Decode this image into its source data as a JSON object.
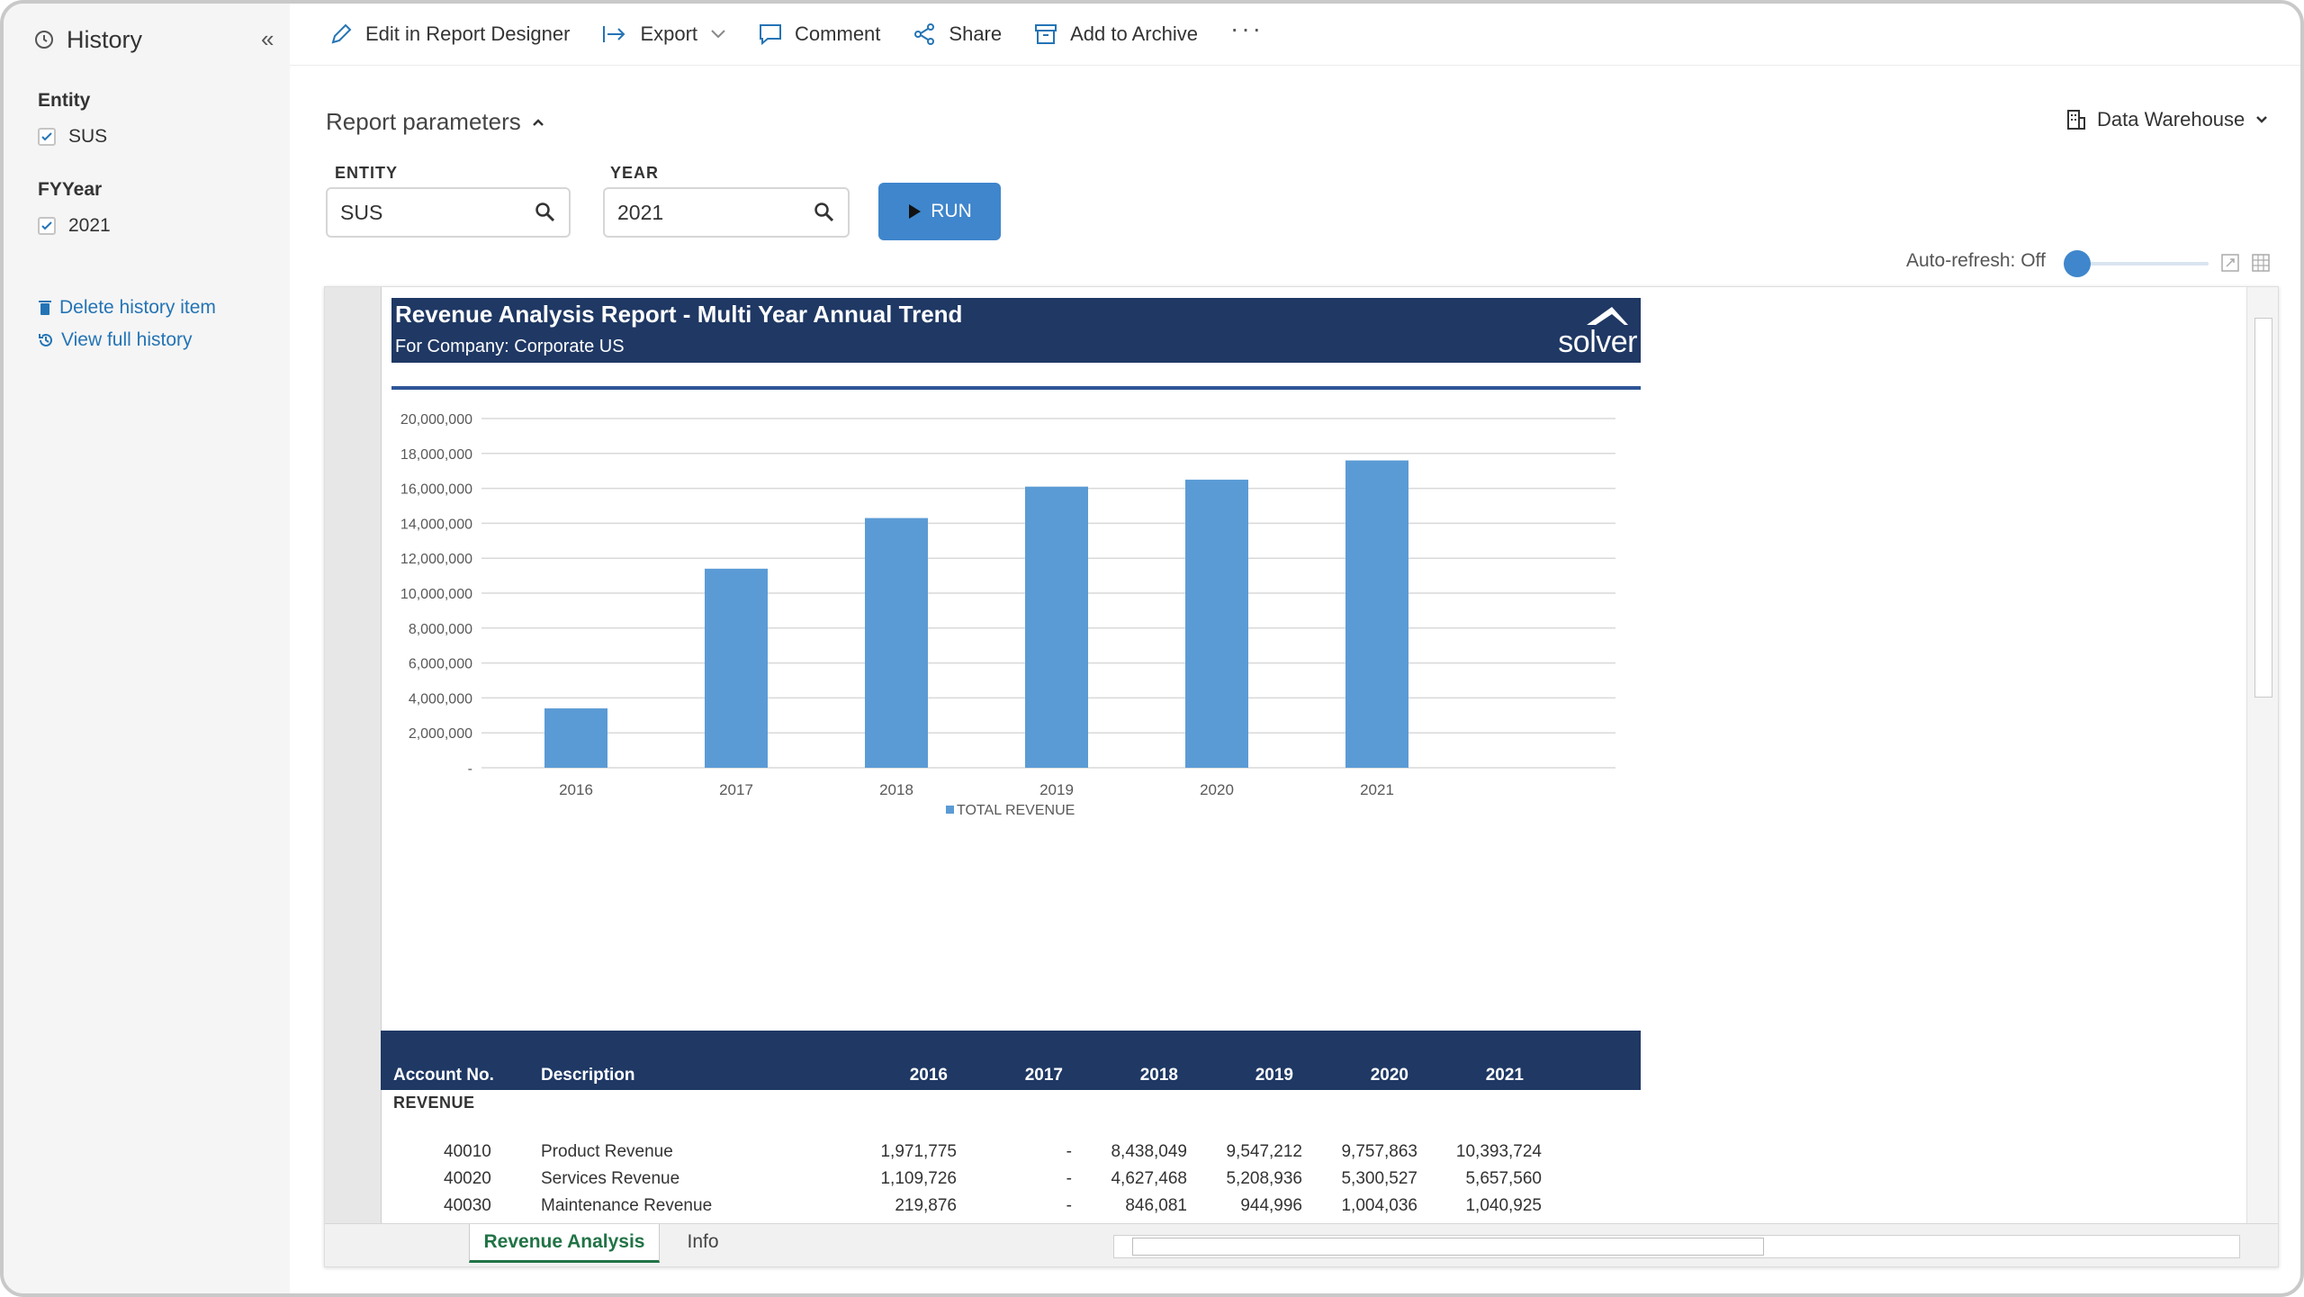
{
  "sidebar": {
    "title": "History",
    "groups": [
      {
        "label": "Entity",
        "value": "SUS"
      },
      {
        "label": "FYYear",
        "value": "2021"
      }
    ],
    "links": {
      "delete": "Delete history item",
      "full_history": "View full history"
    }
  },
  "toolbar": {
    "edit": "Edit in Report Designer",
    "export": "Export",
    "comment": "Comment",
    "share": "Share",
    "archive": "Add to Archive",
    "more": "···"
  },
  "params": {
    "title": "Report parameters",
    "data_source": "Data Warehouse",
    "entity_label": "ENTITY",
    "entity_value": "SUS",
    "year_label": "YEAR",
    "year_value": "2021",
    "run_label": "RUN",
    "auto_refresh": "Auto-refresh: Off"
  },
  "report": {
    "title": "Revenue Analysis Report - Multi Year Annual Trend",
    "subtitle": "For Company: Corporate US",
    "logo": "solver",
    "columns": [
      "Account No.",
      "Description",
      "2016",
      "2017",
      "2018",
      "2019",
      "2020",
      "2021"
    ],
    "section": "REVENUE",
    "rows": [
      {
        "account": "40010",
        "desc": "Product Revenue",
        "vals": [
          "1,971,775",
          "-",
          "8,438,049",
          "9,547,212",
          "9,757,863",
          "10,393,724"
        ]
      },
      {
        "account": "40020",
        "desc": "Services Revenue",
        "vals": [
          "1,109,726",
          "-",
          "4,627,468",
          "5,208,936",
          "5,300,527",
          "5,657,560"
        ]
      },
      {
        "account": "40030",
        "desc": "Maintenance Revenue",
        "vals": [
          "219,876",
          "-",
          "846,081",
          "944,996",
          "1,004,036",
          "1,040,925"
        ]
      }
    ]
  },
  "tabs": [
    "Revenue Analysis",
    "Info"
  ],
  "colors": {
    "accent": "#3f86cc",
    "banner": "#1f3864",
    "bar": "#5b9bd5",
    "sheet_tab": "#217346"
  },
  "chart_data": {
    "type": "bar",
    "categories": [
      "2016",
      "2017",
      "2018",
      "2019",
      "2020",
      "2021"
    ],
    "series": [
      {
        "name": "TOTAL REVENUE",
        "values": [
          3400000,
          11400000,
          14300000,
          16100000,
          16500000,
          17600000
        ]
      }
    ],
    "ylim": [
      0,
      20000000
    ],
    "yticks": [
      "-",
      "2,000,000",
      "4,000,000",
      "6,000,000",
      "8,000,000",
      "10,000,000",
      "12,000,000",
      "14,000,000",
      "16,000,000",
      "18,000,000",
      "20,000,000"
    ],
    "legend": "bottom",
    "grid": true
  }
}
